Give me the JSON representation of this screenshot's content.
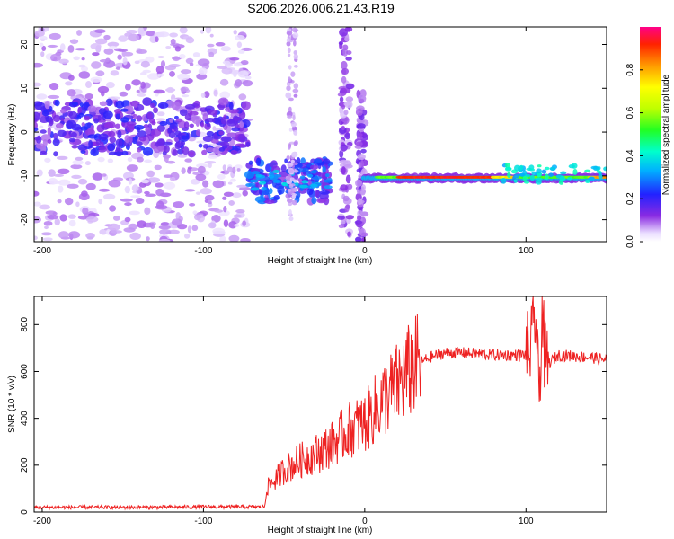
{
  "title": "S206.2026.006.21.43.R19",
  "chart_data": [
    {
      "type": "heatmap",
      "xlabel": "Height of straight line (km)",
      "ylabel": "Frequency (Hz)",
      "xlim": [
        -205,
        150
      ],
      "ylim": [
        -25,
        24
      ],
      "xticks": [
        -200,
        -100,
        0,
        100
      ],
      "yticks": [
        -20,
        -10,
        0,
        10,
        20
      ],
      "colorbar": {
        "label": "Normalized spectral amplitude",
        "range": [
          0,
          1
        ],
        "ticks": [
          0.0,
          0.2,
          0.4,
          0.6,
          0.8
        ]
      },
      "features": [
        {
          "name": "noise band",
          "x_range": [
            -205,
            -72
          ],
          "frequency": 1,
          "amplitude": 0.15
        },
        {
          "name": "cluster",
          "x_range": [
            -72,
            -2
          ],
          "frequency": -11,
          "amplitude": 0.25
        },
        {
          "name": "carrier line",
          "x_range": [
            0,
            150
          ],
          "frequency": -10.5,
          "amplitude_peak": 0.95
        }
      ]
    },
    {
      "type": "line",
      "xlabel": "Height of straight line (km)",
      "ylabel": "SNR (10 * v/v)",
      "xlim": [
        -205,
        150
      ],
      "ylim": [
        0,
        920
      ],
      "xticks": [
        -200,
        -100,
        0,
        100
      ],
      "yticks": [
        0,
        200,
        400,
        600,
        800
      ],
      "series": [
        {
          "name": "SNR",
          "color": "#ee2222",
          "x": [
            -205,
            -150,
            -100,
            -62,
            -61,
            -50,
            -40,
            -30,
            -20,
            -10,
            0,
            10,
            20,
            30,
            40,
            50,
            60,
            80,
            100,
            104,
            106,
            108,
            110,
            112,
            120,
            140,
            150
          ],
          "y": [
            20,
            20,
            22,
            22,
            100,
            180,
            220,
            250,
            290,
            350,
            380,
            470,
            540,
            620,
            660,
            680,
            680,
            670,
            670,
            720,
            860,
            470,
            850,
            620,
            670,
            660,
            650
          ]
        }
      ]
    }
  ]
}
